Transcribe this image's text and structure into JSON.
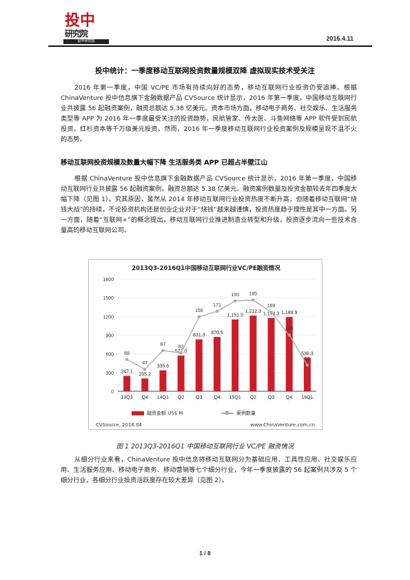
{
  "header": {
    "logo_big": "投中",
    "logo_sub": "研究院",
    "logo_tiny": "投中研究院",
    "date": "2016.4.11"
  },
  "title": "投中统计：一季度移动互联网投资数量规模双降 虚拟现实技术受关注",
  "intro": {
    "text": "2016 年第一季度，中国 VC/PE 市场有持续向好的态势，移动互联网行业投资仍受追捧。根据 ChinaVenture 投中信息旗下金融数据产品 CVSource 统计显示，2016 年第一季度，中国移动互联网行业共披露 56 起融资案例，融资总额达 5.38 亿美元。资本市场方面，移动电子商务、社交娱乐、生活服务类型等 APP 为 2016 年一季度最受关注的投资趋势，民航管家、传太医、斗鱼网络等 APP 软件受到民航投资、红杉资本等千万级美元投资。然而，2016 年一季度移动互联网行业投资案例及规模呈现不温不火的态势。"
  },
  "subhead": "移动互联网投资规模及数量大幅下降 生活服务类 APP 已超占半壁江山",
  "section1": {
    "text": "根据 ChinaVenture 投中信息旗下金融数据产品 CVSource 统计显示，2016 年第一季度，中国移动互联网行业共披露 56 起融资案例，融资总额达 5.38 亿美元。融资案例数量及投资金额较去年四季度大幅下降（见图 1）。究其原因，虽然从 2014 年移动互联网行业投资热度不断升高，但随着移动互联网“烧钱大战”的持续，不论投资机构还是创业企业对于“烧钱”越来越谨慎，投资热度趋于理性是其中一方面。另一方面，随着“互联网+”的概念提出，移动互联网行业推进制造业转型和升级，投资逐步流向一些技术含量高的移动互联网公司。"
  },
  "chart_data": {
    "type": "bar",
    "title": "2013Q3-2016Q1中国移动互联网行业VC/PE融资情况",
    "categories": [
      "13Q3",
      "Q4",
      "14Q1",
      "Q2",
      "Q3",
      "Q4",
      "15Q1",
      "Q2",
      "Q3",
      "Q4",
      "16Q1"
    ],
    "series": [
      {
        "name": "融资金额 US$ M",
        "type": "bar",
        "values": [
          247.1,
          205.2,
          335.6,
          572.0,
          831.3,
          870.5,
          1151.5,
          1212.3,
          1174.3,
          1189.9,
          538.3
        ],
        "labels": [
          "247.1",
          "205.2",
          "335.6",
          "572.0",
          "831.3",
          "870.5",
          "1,151.5",
          "1,212.3",
          "1,174.3",
          "1,189.9",
          "538.3"
        ]
      },
      {
        "name": "案例数量",
        "type": "line",
        "values": [
          68,
          47,
          87,
          82,
          159,
          171,
          193,
          195,
          169,
          120,
          56
        ]
      }
    ],
    "ylim": [
      0,
      1800
    ],
    "yticks": [
      "0",
      "300",
      "600",
      "900",
      "1200",
      "1500",
      "1800"
    ],
    "legend": "bottom",
    "colors": {
      "bar": "#c8202a",
      "line": "#aaaaaa"
    },
    "source_left": "CVSource, 2016.04",
    "source_right": "www.ChinaVenture.com.cn"
  },
  "caption": "图 1 2013Q3-2016Q1 中国移动互联网行业 VC/PE 融资情况",
  "section2": {
    "text": "从细分行业来看，ChinaVenture 投中信息将移动互联网分为基础应用、工具性应用、社交娱乐应用、生活服务应用、移动电子商务、移动营销等七个细分行业，今年一季度披露的 56 起案例共涉及 5 个细分行业，各细分行业投资活跃度存在较大差异（见图 2）。"
  },
  "footer": {
    "page": "1 / 8"
  }
}
